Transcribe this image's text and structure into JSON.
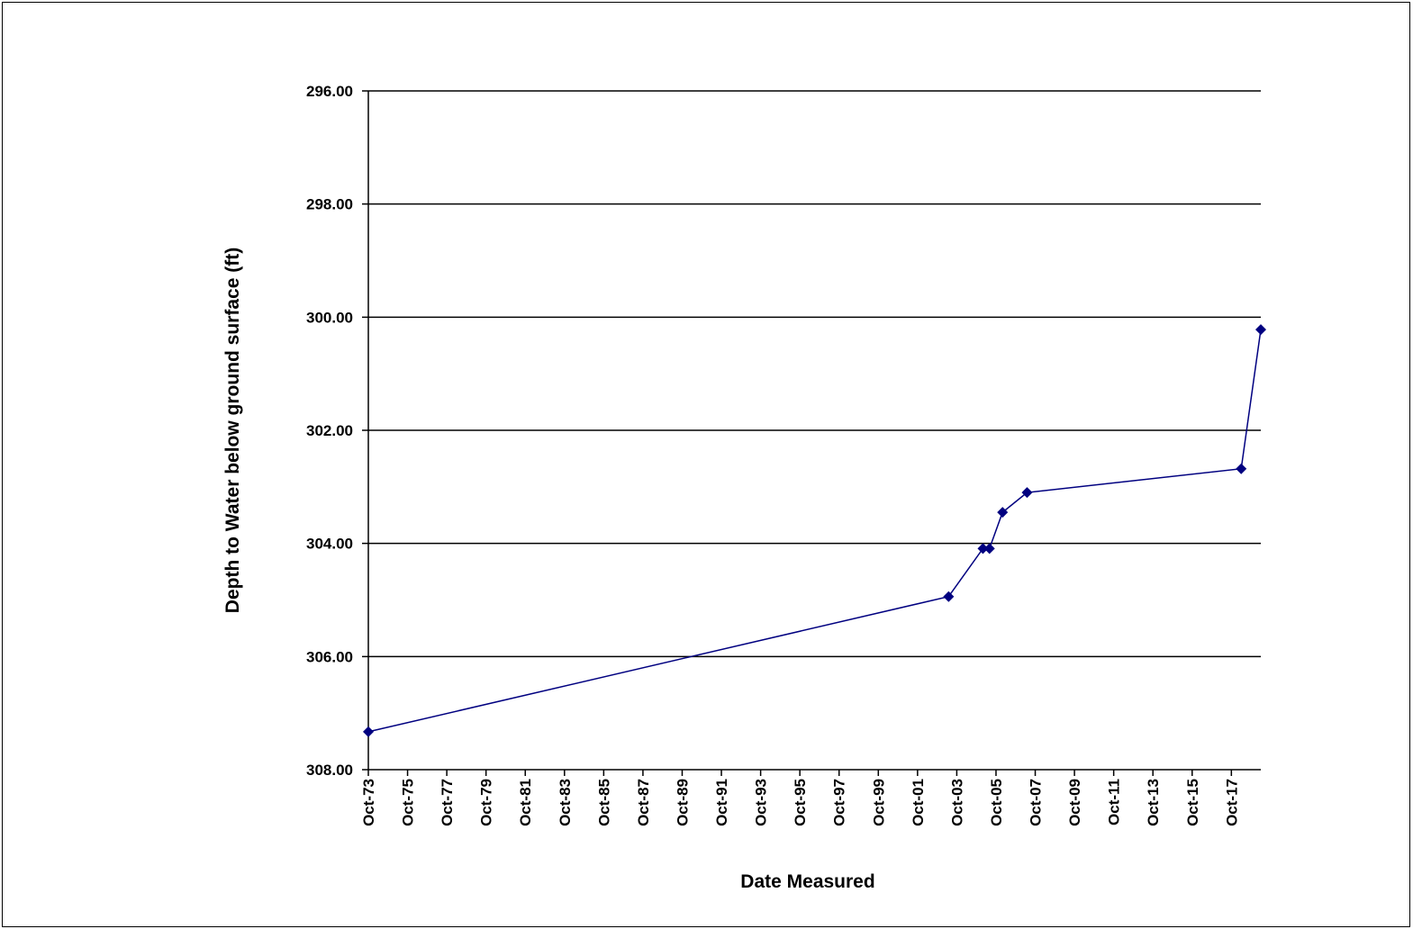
{
  "chart_data": {
    "type": "line",
    "x_label": "Date Measured",
    "y_label": "Depth to Water below ground surface (ft)",
    "series": [
      {
        "name": "Depth to Water",
        "color": "#000080",
        "x": [
          "1973-10",
          "2003-05",
          "2005-02",
          "2005-06",
          "2006-02",
          "2007-05",
          "2018-04",
          "2019-04"
        ],
        "values": [
          307.33,
          304.94,
          304.09,
          304.09,
          303.45,
          303.1,
          302.68,
          300.22
        ]
      }
    ],
    "xlim": [
      "1973-10",
      "2019-04"
    ],
    "xticks": [
      {
        "value": "1973-10",
        "label": "Oct-73"
      },
      {
        "value": "1975-10",
        "label": "Oct-75"
      },
      {
        "value": "1977-10",
        "label": "Oct-77"
      },
      {
        "value": "1979-10",
        "label": "Oct-79"
      },
      {
        "value": "1981-10",
        "label": "Oct-81"
      },
      {
        "value": "1983-10",
        "label": "Oct-83"
      },
      {
        "value": "1985-10",
        "label": "Oct-85"
      },
      {
        "value": "1987-10",
        "label": "Oct-87"
      },
      {
        "value": "1989-10",
        "label": "Oct-89"
      },
      {
        "value": "1991-10",
        "label": "Oct-91"
      },
      {
        "value": "1993-10",
        "label": "Oct-93"
      },
      {
        "value": "1995-10",
        "label": "Oct-95"
      },
      {
        "value": "1997-10",
        "label": "Oct-97"
      },
      {
        "value": "1999-10",
        "label": "Oct-99"
      },
      {
        "value": "2001-10",
        "label": "Oct-01"
      },
      {
        "value": "2003-10",
        "label": "Oct-03"
      },
      {
        "value": "2005-10",
        "label": "Oct-05"
      },
      {
        "value": "2007-10",
        "label": "Oct-07"
      },
      {
        "value": "2009-10",
        "label": "Oct-09"
      },
      {
        "value": "2011-10",
        "label": "Oct-11"
      },
      {
        "value": "2013-10",
        "label": "Oct-13"
      },
      {
        "value": "2015-10",
        "label": "Oct-15"
      },
      {
        "value": "2017-10",
        "label": "Oct-17"
      }
    ],
    "ylim": [
      308,
      296
    ],
    "yticks": [
      {
        "value": 296,
        "label": "296.00"
      },
      {
        "value": 298,
        "label": "298.00"
      },
      {
        "value": 300,
        "label": "300.00"
      },
      {
        "value": 302,
        "label": "302.00"
      },
      {
        "value": 304,
        "label": "304.00"
      },
      {
        "value": 306,
        "label": "306.00"
      },
      {
        "value": 308,
        "label": "308.00"
      }
    ],
    "grid": true
  }
}
